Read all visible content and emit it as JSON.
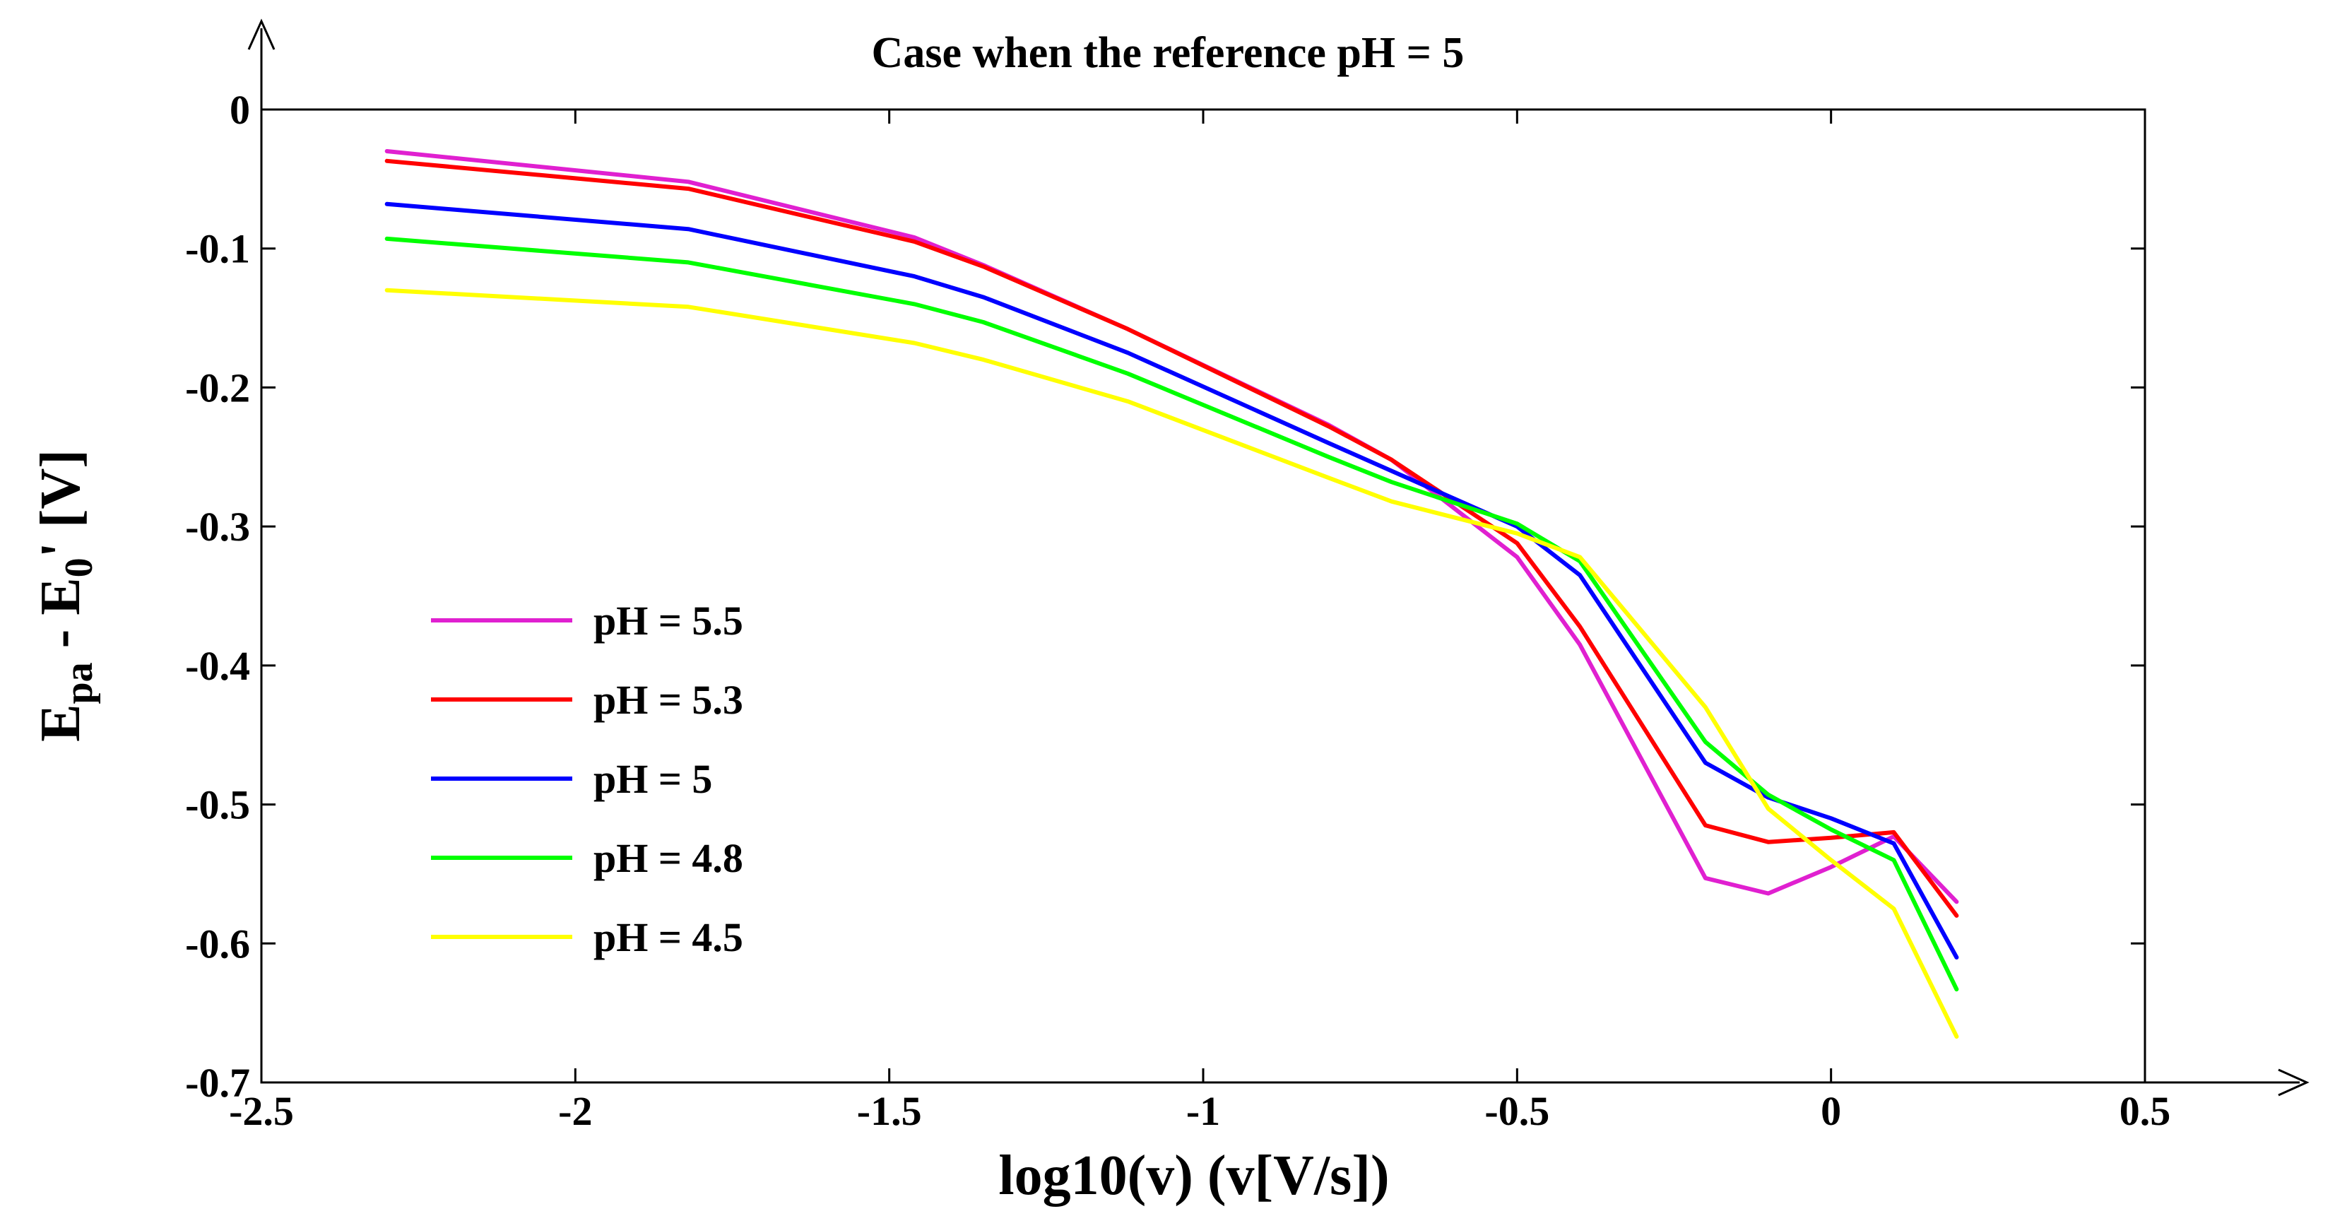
{
  "chart_data": {
    "type": "line",
    "title": "Case when the reference pH = 5",
    "xlabel": "log10(v) (v[V/s])",
    "ylabel": {
      "base": "E",
      "sub1": "pa",
      "middle": " - E",
      "sub2": "0",
      "suffix": "' [V]"
    },
    "xlim": [
      -2.5,
      0.5
    ],
    "ylim": [
      -0.7,
      0
    ],
    "xticks": [
      {
        "value": -2.5,
        "label": "-2.5"
      },
      {
        "value": -2,
        "label": "-2"
      },
      {
        "value": -1.5,
        "label": "-1.5"
      },
      {
        "value": -1,
        "label": "-1"
      },
      {
        "value": -0.5,
        "label": "-0.5"
      },
      {
        "value": 0,
        "label": "0"
      },
      {
        "value": 0.5,
        "label": "0.5"
      }
    ],
    "yticks": [
      {
        "value": 0,
        "label": "0"
      },
      {
        "value": -0.1,
        "label": "-0.1"
      },
      {
        "value": -0.2,
        "label": "-0.2"
      },
      {
        "value": -0.3,
        "label": "-0.3"
      },
      {
        "value": -0.4,
        "label": "-0.4"
      },
      {
        "value": -0.5,
        "label": "-0.5"
      },
      {
        "value": -0.6,
        "label": "-0.6"
      },
      {
        "value": -0.7,
        "label": "-0.7"
      }
    ],
    "grid": false,
    "legend_position": "lower-left",
    "x": [
      -2.3,
      -1.82,
      -1.46,
      -1.35,
      -1.12,
      -0.8,
      -0.7,
      -0.5,
      -0.4,
      -0.2,
      -0.1,
      0.0,
      0.1,
      0.2
    ],
    "series": [
      {
        "name": "pH = 5.5",
        "color": "#e020d0",
        "values": [
          -0.03,
          -0.052,
          -0.092,
          -0.112,
          -0.158,
          -0.227,
          -0.252,
          -0.322,
          -0.385,
          -0.553,
          -0.564,
          -0.545,
          -0.523,
          -0.57
        ]
      },
      {
        "name": "pH = 5.3",
        "color": "#ff0000",
        "values": [
          -0.037,
          -0.057,
          -0.095,
          -0.113,
          -0.158,
          -0.228,
          -0.252,
          -0.312,
          -0.372,
          -0.515,
          -0.527,
          -0.524,
          -0.52,
          -0.58
        ]
      },
      {
        "name": "pH = 5",
        "color": "#0000ff",
        "values": [
          -0.068,
          -0.086,
          -0.12,
          -0.135,
          -0.175,
          -0.24,
          -0.26,
          -0.3,
          -0.335,
          -0.47,
          -0.495,
          -0.51,
          -0.528,
          -0.61
        ]
      },
      {
        "name": "pH = 4.8",
        "color": "#00ff00",
        "values": [
          -0.093,
          -0.11,
          -0.14,
          -0.153,
          -0.19,
          -0.25,
          -0.268,
          -0.298,
          -0.325,
          -0.455,
          -0.493,
          -0.518,
          -0.54,
          -0.633
        ]
      },
      {
        "name": "pH = 4.5",
        "color": "#ffff00",
        "values": [
          -0.13,
          -0.142,
          -0.168,
          -0.18,
          -0.21,
          -0.265,
          -0.282,
          -0.305,
          -0.322,
          -0.43,
          -0.503,
          -0.54,
          -0.575,
          -0.667
        ]
      }
    ]
  }
}
